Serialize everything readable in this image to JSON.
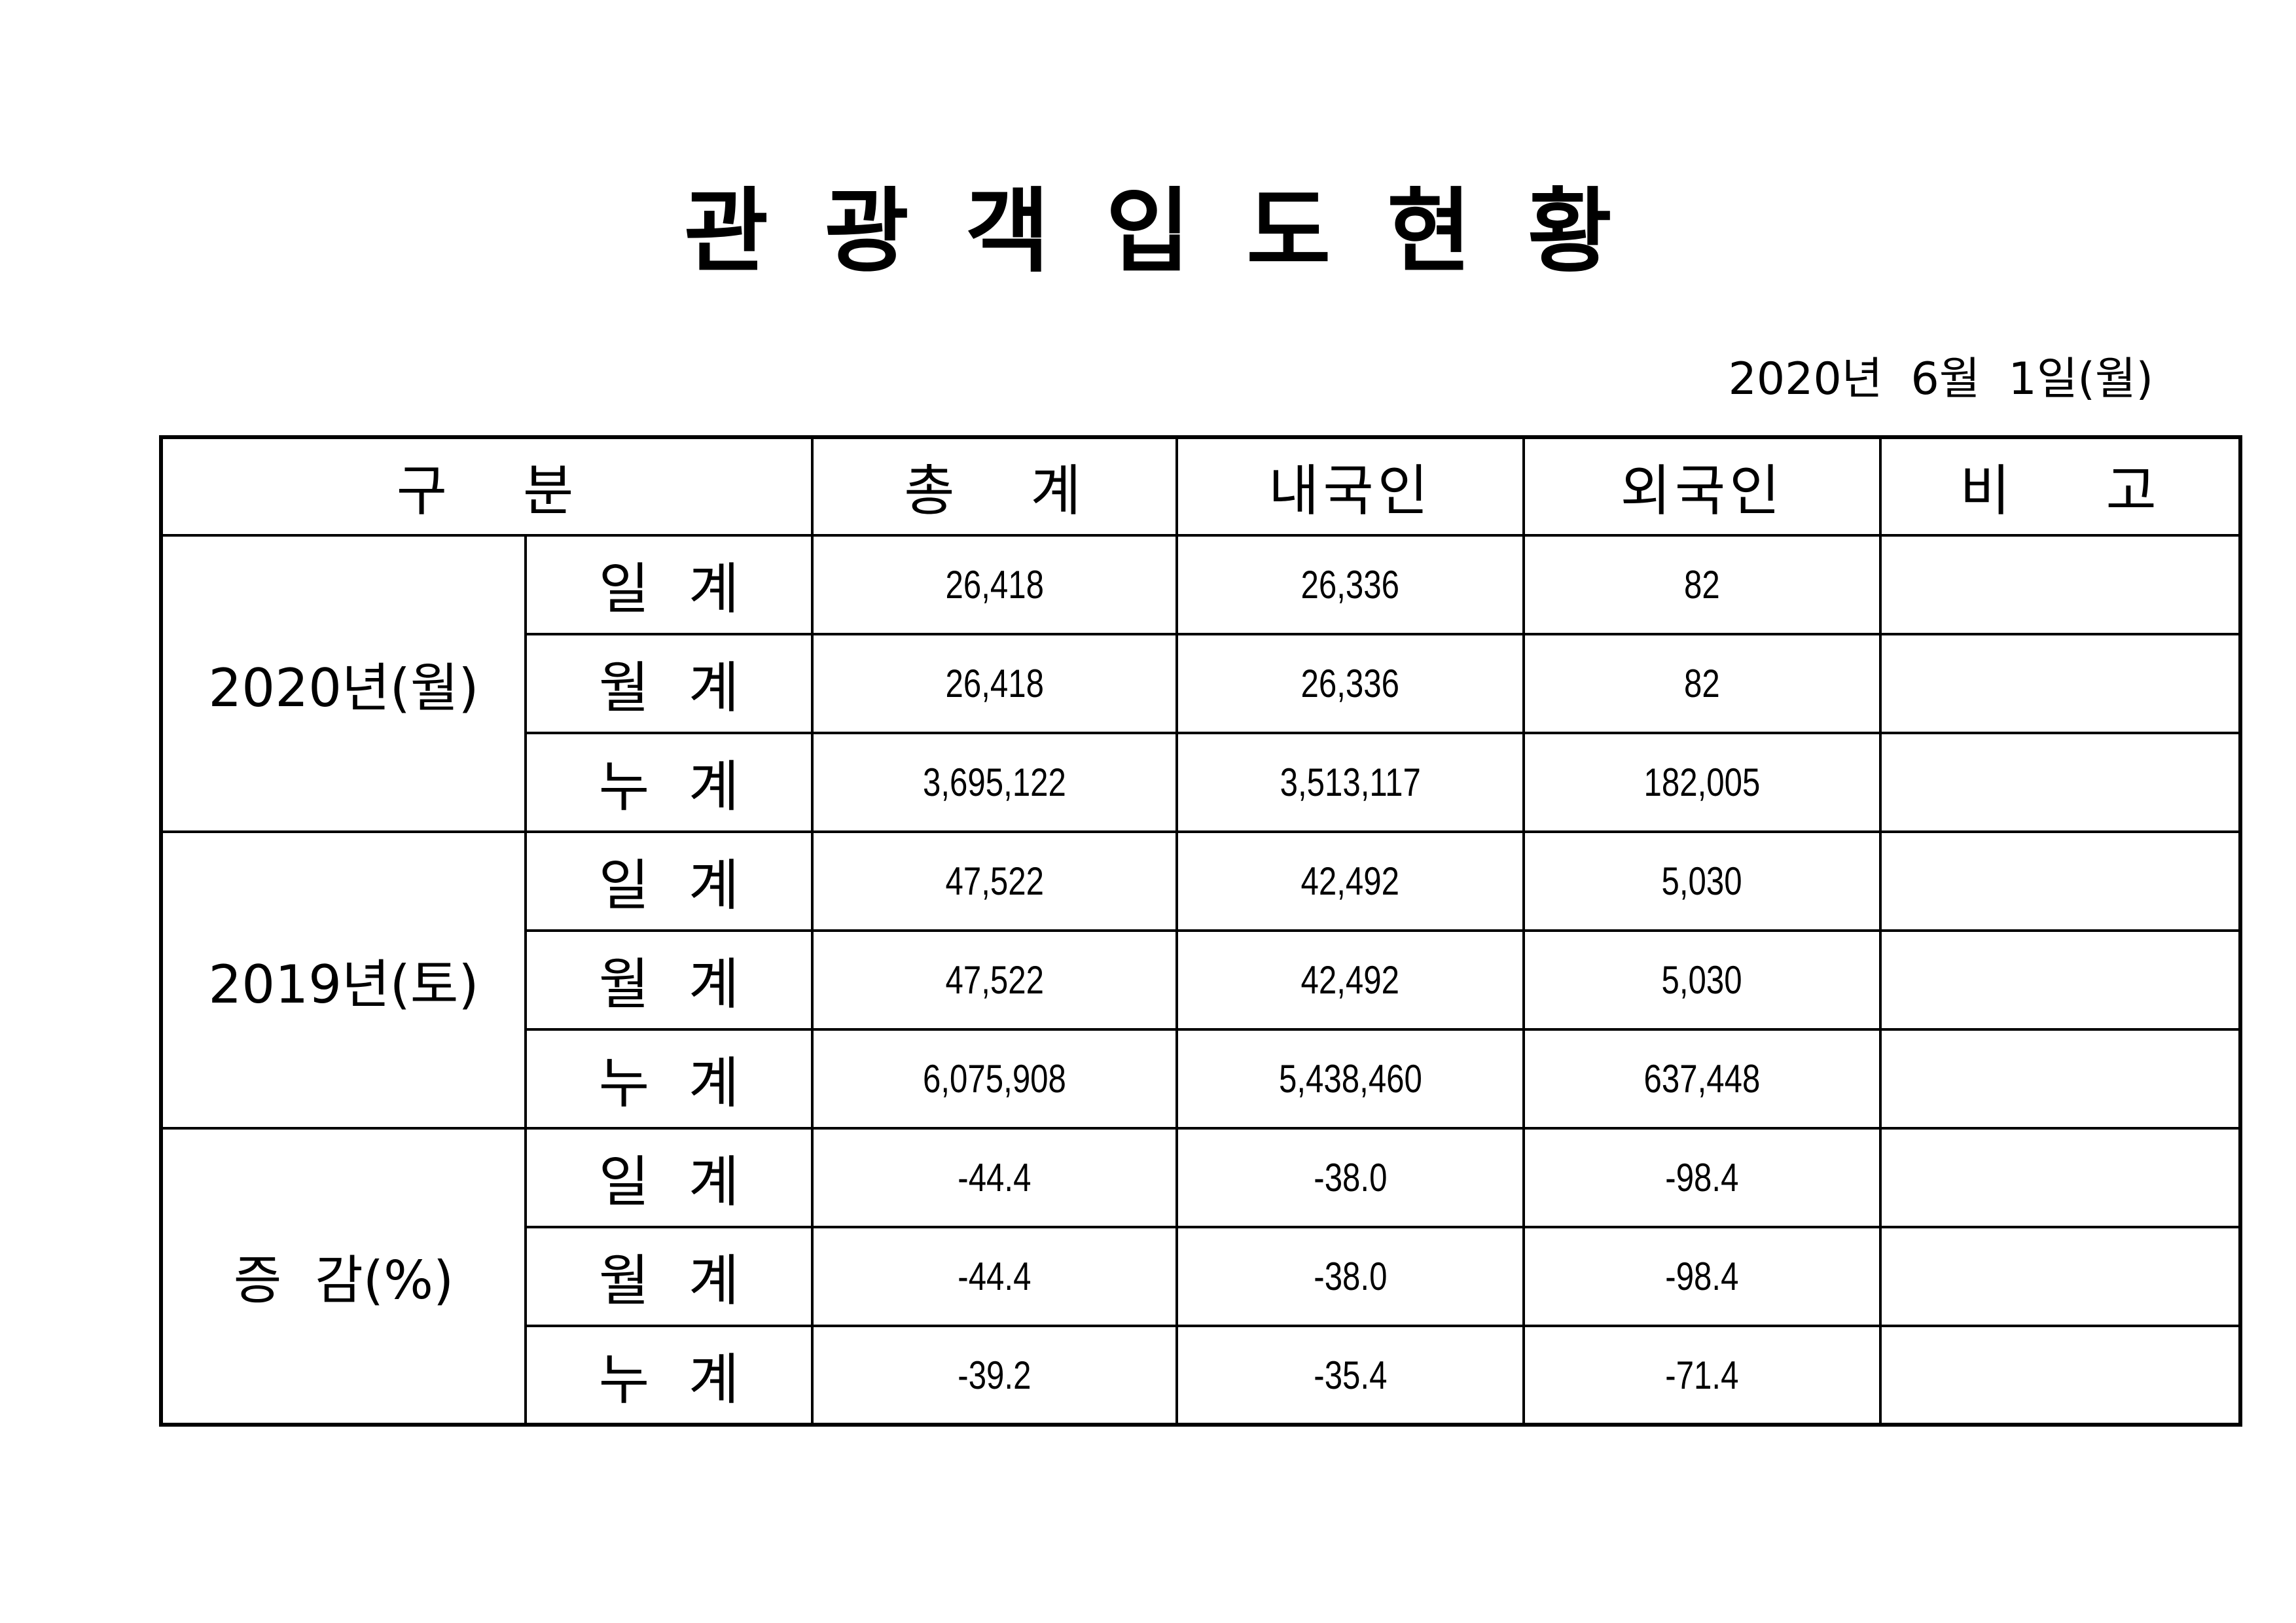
{
  "document": {
    "title": "관광객입도현황",
    "date": "2020년  6월  1일(월)"
  },
  "table": {
    "header": {
      "category": [
        "구",
        "분"
      ],
      "total": [
        "총",
        "계"
      ],
      "domestic": "내국인",
      "foreign": "외국인",
      "note": [
        "비",
        "고"
      ]
    },
    "groups": [
      {
        "label": "2020년(월)",
        "rows": [
          {
            "sub": [
              "일",
              "계"
            ],
            "total": "26,418",
            "domestic": "26,336",
            "foreign": "82",
            "note": ""
          },
          {
            "sub": [
              "월",
              "계"
            ],
            "total": "26,418",
            "domestic": "26,336",
            "foreign": "82",
            "note": ""
          },
          {
            "sub": [
              "누",
              "계"
            ],
            "total": "3,695,122",
            "domestic": "3,513,117",
            "foreign": "182,005",
            "note": ""
          }
        ]
      },
      {
        "label": "2019년(토)",
        "rows": [
          {
            "sub": [
              "일",
              "계"
            ],
            "total": "47,522",
            "domestic": "42,492",
            "foreign": "5,030",
            "note": ""
          },
          {
            "sub": [
              "월",
              "계"
            ],
            "total": "47,522",
            "domestic": "42,492",
            "foreign": "5,030",
            "note": ""
          },
          {
            "sub": [
              "누",
              "계"
            ],
            "total": "6,075,908",
            "domestic": "5,438,460",
            "foreign": "637,448",
            "note": ""
          }
        ]
      },
      {
        "label": "증  감(%)",
        "rows": [
          {
            "sub": [
              "일",
              "계"
            ],
            "total": "-44.4",
            "domestic": "-38.0",
            "foreign": "-98.4",
            "note": ""
          },
          {
            "sub": [
              "월",
              "계"
            ],
            "total": "-44.4",
            "domestic": "-38.0",
            "foreign": "-98.4",
            "note": ""
          },
          {
            "sub": [
              "누",
              "계"
            ],
            "total": "-39.2",
            "domestic": "-35.4",
            "foreign": "-71.4",
            "note": ""
          }
        ]
      }
    ]
  }
}
